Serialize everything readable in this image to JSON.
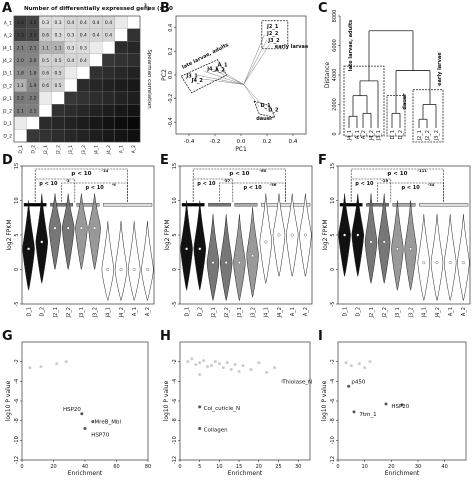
{
  "panels": {
    "A": {
      "letter": "A",
      "title": "Number of differentially expressed genes (x 10",
      "title_sup": "3",
      "right_label": "Spearman correlation",
      "rows": [
        "A_1",
        "A_2",
        "J4_1",
        "J4_2",
        "J3_1",
        "J3_2",
        "J2_1",
        "J2_2",
        "D_1",
        "D_2"
      ],
      "cols": [
        "D_1",
        "D_2",
        "J2_1",
        "J2_2",
        "J3_1",
        "J3_2",
        "J4_1",
        "J4_2",
        "A_1",
        "A_2"
      ],
      "cells": [
        [
          "3.4",
          "3.2",
          "0.3",
          "0.3",
          "0.4",
          "0.4",
          "0.4",
          "0.4",
          "",
          ""
        ],
        [
          "3.3",
          "3.2",
          "0.6",
          "0.3",
          "0.3",
          "0.4",
          "0.4",
          "0.4",
          "",
          ""
        ],
        [
          "2.1",
          "2.1",
          "1.1",
          "1.1",
          "0.3",
          "0.3",
          "",
          "",
          "",
          ""
        ],
        [
          "2.0",
          "2.0",
          "0.5",
          "0.5",
          "0.4",
          "0.4",
          "",
          "",
          "",
          ""
        ],
        [
          "1.8",
          "1.8",
          "0.6",
          "0.5",
          "",
          "",
          "",
          "",
          "",
          ""
        ],
        [
          "1.1",
          "1.9",
          "0.6",
          "0.5",
          "",
          "",
          "",
          "",
          "",
          ""
        ],
        [
          "2.2",
          "2.2",
          "",
          "",
          "",
          "",
          "",
          "",
          "",
          ""
        ],
        [
          "2.1",
          "2.1",
          "",
          "",
          "",
          "",
          "",
          "",
          "",
          ""
        ],
        [
          "",
          "",
          "",
          "",
          "",
          "",
          "",
          "",
          "",
          ""
        ],
        [
          "",
          "",
          "",
          "",
          "",
          "",
          "",
          "",
          "",
          ""
        ]
      ]
    },
    "B": {
      "letter": "B",
      "xlabel": "PC1",
      "ylabel": "PC2",
      "xticks": [
        "-0.4",
        "-0.2",
        "0.0",
        "0.2",
        "0.4"
      ],
      "yticks": [
        "0.4",
        "0.2",
        "0.0",
        "-0.2",
        "-0.4"
      ],
      "group_labels": [
        "late larvae, adults",
        "early larvae",
        "dauer"
      ],
      "point_labels": [
        "J2_1",
        "J2_2",
        "J3_2",
        "A_1",
        "A_2",
        "J4_1",
        "J3_1",
        "J4_2",
        "D_1",
        "D_2"
      ]
    },
    "C": {
      "letter": "C",
      "ylabel": "Distance",
      "yticks": [
        "8000",
        "6000",
        "4000",
        "2000",
        "0"
      ],
      "group_labels": [
        "late larvae, adults",
        "dauer",
        "early larvae"
      ],
      "leaves": [
        "J4_1",
        "A_1",
        "A_2",
        "J4_2",
        "J3_1",
        "D_1",
        "D_2",
        "J2_1",
        "J2_2",
        "J3_2"
      ]
    },
    "D": {
      "letter": "D",
      "ylabel": "log2 FPKM",
      "categories": [
        "D_1",
        "D_2",
        "J2_1",
        "J2_2",
        "J3_1",
        "J3_2",
        "J4_1",
        "J4_2",
        "A_1",
        "A_2"
      ],
      "centers": [
        3,
        4,
        6,
        6,
        6,
        6,
        0,
        0,
        0,
        0
      ],
      "p_top": "p < 10",
      "p_top_exp": "-14",
      "p_mid_left": "p < 10",
      "p_mid_left_exp": "-3",
      "p_mid_right": "p < 10",
      "p_mid_right_exp": "-9"
    },
    "E": {
      "letter": "E",
      "ylabel": "log2 FPKM",
      "categories": [
        "D_1",
        "D_2",
        "J2_1",
        "J2_2",
        "J3_1",
        "J3_2",
        "J4_1",
        "J4_2",
        "A_1",
        "A_2"
      ],
      "centers": [
        3,
        3,
        1,
        1,
        1,
        2,
        4,
        5,
        5,
        5
      ],
      "p_top": "p < 10",
      "p_top_exp": "-60",
      "p_mid_left": "p < 10",
      "p_mid_left_exp": "-57",
      "p_mid_right": "p < 10",
      "p_mid_right_exp": "-36"
    },
    "F": {
      "letter": "F",
      "ylabel": "log2 FPKM",
      "categories": [
        "D_1",
        "D_2",
        "J2_1",
        "J2_2",
        "J3_1",
        "J3_2",
        "J4_1",
        "J4_2",
        "A_1",
        "A_2"
      ],
      "centers": [
        5,
        5,
        4,
        4,
        3,
        3,
        1,
        1,
        1,
        1
      ],
      "p_top": "p < 10",
      "p_top_exp": "-111",
      "p_mid_left": "p < 10",
      "p_mid_left_exp": "-29",
      "p_mid_right": "p < 10",
      "p_mid_right_exp": "-34"
    },
    "G": {
      "letter": "G",
      "xlabel": "Enrichment",
      "ylabel": "log10 P value",
      "xticks": [
        "0",
        "20",
        "40",
        "60",
        "80"
      ],
      "yticks": [
        "-2",
        "-4",
        "-6",
        "-8",
        "-10",
        "-12"
      ],
      "annotations": [
        "HSP20",
        "MreB_Mbl",
        "HSP70"
      ]
    },
    "H": {
      "letter": "H",
      "xlabel": "Enrichment",
      "ylabel": "log10 P value",
      "xticks": [
        "0",
        "5",
        "10",
        "15",
        "20",
        "25",
        "30"
      ],
      "yticks": [
        "-2",
        "-4",
        "-6",
        "-8",
        "-10",
        "-12"
      ],
      "annotations": [
        "Thiolase_N",
        "Col_cuticle_N",
        "Collagen"
      ]
    },
    "I": {
      "letter": "I",
      "xlabel": "Enrichment",
      "ylabel": "log10 P value",
      "xticks": [
        "0",
        "10",
        "20",
        "30",
        "40"
      ],
      "yticks": [
        "-2",
        "-4",
        "-6",
        "-8",
        "-10",
        "-12"
      ],
      "annotations": [
        "p450",
        "HSP20",
        "7tm_1"
      ]
    }
  },
  "chart_data": [
    {
      "type": "heatmap",
      "panel": "A",
      "title": "Number of differentially expressed genes (x 10^3)"
    },
    {
      "type": "scatter",
      "panel": "B",
      "xlabel": "PC1",
      "ylabel": "PC2",
      "xlim": [
        -0.5,
        0.5
      ],
      "ylim": [
        -0.5,
        0.5
      ]
    },
    {
      "type": "other",
      "panel": "C",
      "ylabel": "Distance",
      "ylim": [
        0,
        8000
      ]
    },
    {
      "type": "violin",
      "panel": "D",
      "ylabel": "log2 FPKM",
      "ylim": [
        -5,
        15
      ],
      "categories": [
        "D_1",
        "D_2",
        "J2_1",
        "J2_2",
        "J3_1",
        "J3_2",
        "J4_1",
        "J4_2",
        "A_1",
        "A_2"
      ],
      "medians": [
        3,
        4,
        6,
        6,
        6,
        6,
        0,
        0,
        0,
        0
      ]
    },
    {
      "type": "violin",
      "panel": "E",
      "ylabel": "log2 FPKM",
      "ylim": [
        -5,
        15
      ],
      "categories": [
        "D_1",
        "D_2",
        "J2_1",
        "J2_2",
        "J3_1",
        "J3_2",
        "J4_1",
        "J4_2",
        "A_1",
        "A_2"
      ],
      "medians": [
        3,
        3,
        1,
        1,
        1,
        2,
        4,
        5,
        5,
        5
      ]
    },
    {
      "type": "violin",
      "panel": "F",
      "ylabel": "log2 FPKM",
      "ylim": [
        -5,
        15
      ],
      "categories": [
        "D_1",
        "D_2",
        "J2_1",
        "J2_2",
        "J3_1",
        "J3_2",
        "J4_1",
        "J4_2",
        "A_1",
        "A_2"
      ],
      "medians": [
        5,
        5,
        4,
        4,
        3,
        3,
        1,
        1,
        1,
        1
      ]
    },
    {
      "type": "scatter",
      "panel": "G",
      "xlabel": "Enrichment",
      "ylabel": "log10 P value",
      "xlim": [
        0,
        80
      ],
      "ylim": [
        -12,
        0
      ],
      "points": [
        [
          22,
          -2.2
        ],
        [
          28,
          -2.0
        ],
        [
          5,
          -2.6
        ],
        [
          12,
          -2.5
        ],
        [
          38,
          -7.3
        ],
        [
          45,
          -8.1
        ],
        [
          40,
          -8.8
        ]
      ]
    },
    {
      "type": "scatter",
      "panel": "H",
      "xlabel": "Enrichment",
      "ylabel": "log10 P value",
      "xlim": [
        0,
        33
      ],
      "ylim": [
        -12,
        0
      ],
      "points": [
        [
          2,
          -2
        ],
        [
          3,
          -1.7
        ],
        [
          4,
          -2.3
        ],
        [
          5,
          -2.1
        ],
        [
          6,
          -1.9
        ],
        [
          7,
          -2.5
        ],
        [
          8,
          -2.4
        ],
        [
          9,
          -2.0
        ],
        [
          10,
          -2.2
        ],
        [
          11,
          -2.6
        ],
        [
          12,
          -2.1
        ],
        [
          13,
          -2.8
        ],
        [
          14,
          -2.3
        ],
        [
          15,
          -3.0
        ],
        [
          16,
          -2.4
        ],
        [
          18,
          -2.8
        ],
        [
          20,
          -2.1
        ],
        [
          22,
          -3.1
        ],
        [
          24,
          -2.6
        ],
        [
          5,
          -3.3
        ],
        [
          26,
          -4.0
        ],
        [
          5,
          -6.6
        ],
        [
          5,
          -8.8
        ]
      ]
    },
    {
      "type": "scatter",
      "panel": "I",
      "xlabel": "Enrichment",
      "ylabel": "log10 P value",
      "xlim": [
        0,
        48
      ],
      "ylim": [
        -12,
        0
      ],
      "points": [
        [
          3,
          -2.1
        ],
        [
          5,
          -2.4
        ],
        [
          8,
          -2.2
        ],
        [
          10,
          -2.6
        ],
        [
          12,
          -2.0
        ],
        [
          4,
          -4.5
        ],
        [
          24,
          -6.4
        ],
        [
          6,
          -7.1
        ],
        [
          18,
          -6.3
        ]
      ]
    }
  ]
}
